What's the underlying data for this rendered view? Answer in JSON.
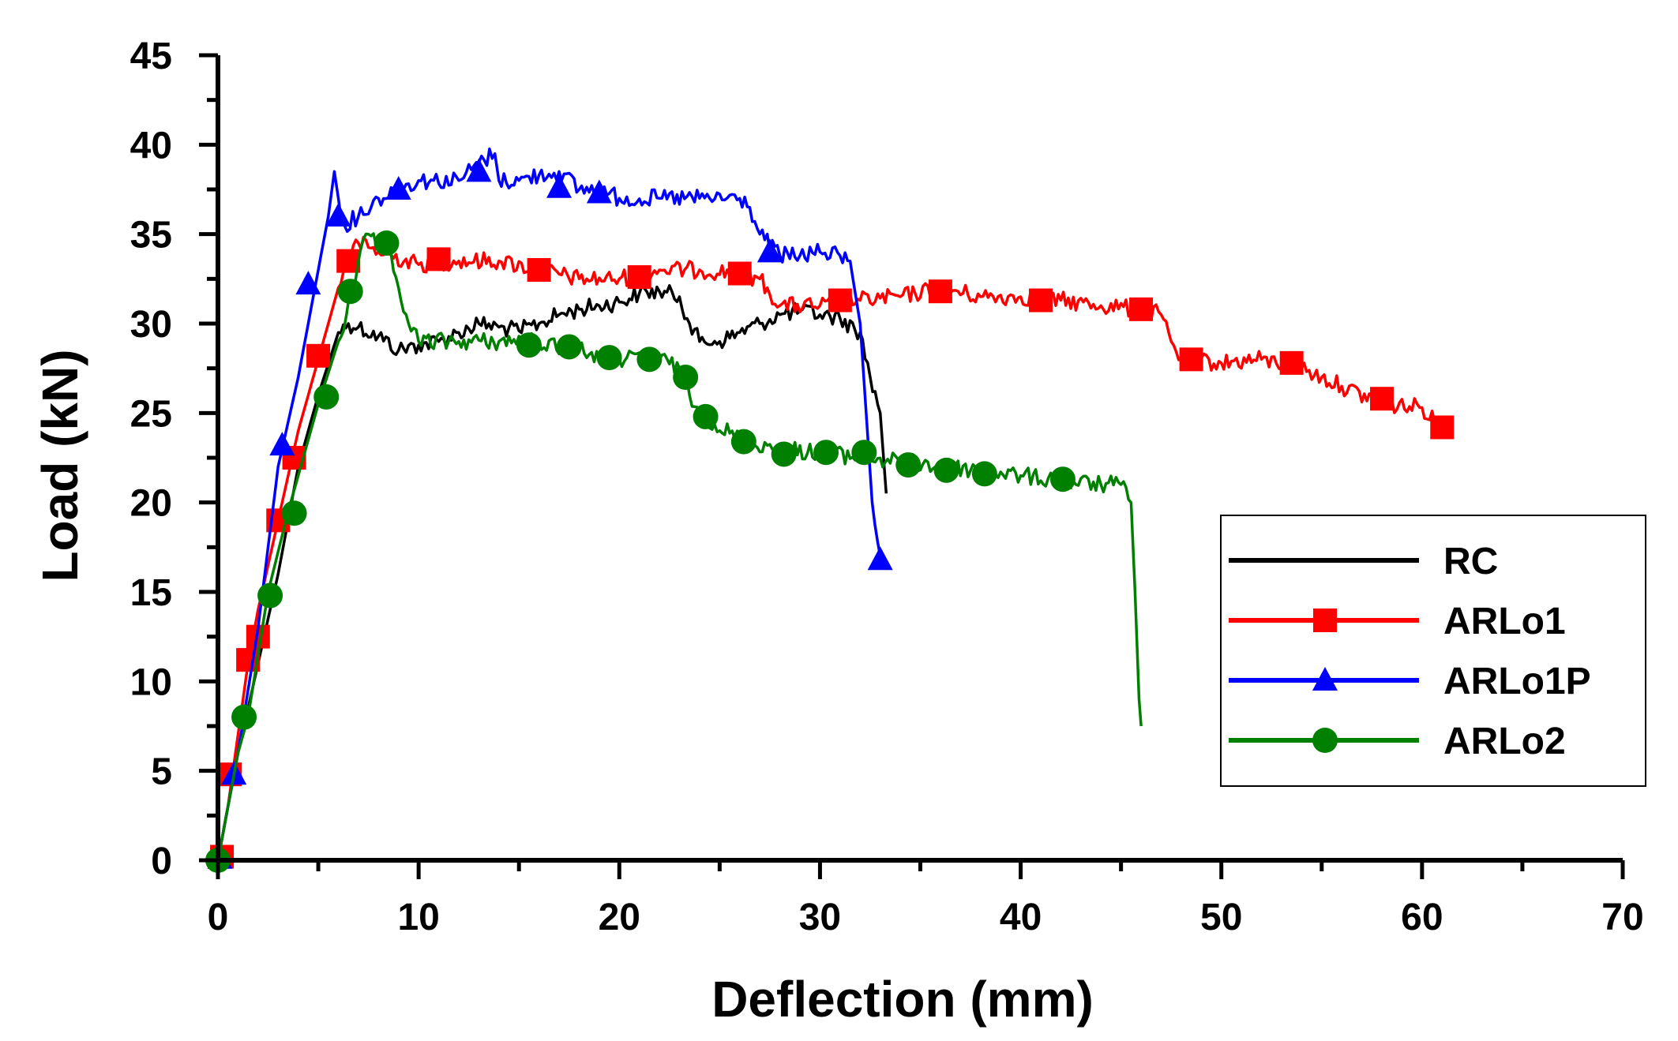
{
  "chart_data": {
    "type": "line",
    "title": "",
    "xlabel": "Deflection (mm)",
    "ylabel": "Load (kN)",
    "xlim": [
      0,
      70
    ],
    "ylim": [
      0,
      45
    ],
    "xticks": [
      0,
      10,
      20,
      30,
      40,
      50,
      60,
      70
    ],
    "yticks": [
      0,
      5,
      10,
      15,
      20,
      25,
      30,
      35,
      40,
      45
    ],
    "grid": false,
    "legend_position": "center-right",
    "series": [
      {
        "name": "RC",
        "color": "#000000",
        "marker": "none",
        "x": [
          0,
          1,
          2,
          3,
          4,
          5,
          6,
          6.5,
          7,
          8,
          9,
          10,
          11,
          12,
          13,
          14,
          15,
          16,
          17,
          18,
          19,
          20,
          21,
          22,
          23,
          23.5,
          24,
          25,
          26,
          27,
          28,
          29,
          30,
          31,
          32,
          32.5,
          33,
          33.3
        ],
        "y": [
          0,
          6,
          11,
          16,
          22,
          26,
          29.5,
          30,
          29.8,
          29.3,
          28.5,
          28.8,
          29,
          29.5,
          30,
          29.8,
          29.6,
          30,
          30.5,
          30.8,
          31,
          31.2,
          31.7,
          31.8,
          31.5,
          30,
          29,
          29,
          29.5,
          30,
          30.5,
          30.7,
          30.5,
          30.3,
          29.5,
          27,
          25,
          20.5
        ],
        "markers_x": [],
        "markers_y": []
      },
      {
        "name": "ARLo1",
        "color": "#ff0000",
        "marker": "square",
        "x": [
          0,
          0.5,
          1,
          1.5,
          2,
          3,
          4,
          5,
          6,
          6.5,
          7,
          8,
          10,
          12,
          14,
          16,
          18,
          20,
          22,
          24,
          26,
          27,
          28,
          30,
          32,
          34,
          36,
          38,
          40,
          42,
          44,
          46,
          47,
          47.5,
          48,
          50,
          52,
          54,
          55,
          56,
          58,
          60,
          61
        ],
        "y": [
          0,
          3,
          7,
          11,
          14,
          19,
          24,
          28,
          32,
          33.8,
          34.5,
          34,
          33.3,
          33.5,
          33.5,
          33,
          32.5,
          32.5,
          33,
          33,
          32.8,
          32.5,
          31,
          31,
          31.3,
          31.5,
          32,
          31.5,
          31.5,
          31.3,
          31,
          30.8,
          30.5,
          29,
          28,
          27.8,
          28,
          27.5,
          27,
          26.5,
          25.5,
          25.3,
          24.3
        ],
        "markers_x": [
          0.2,
          0.6,
          1.5,
          2,
          3,
          3.8,
          5,
          6.5,
          11,
          16,
          21,
          26,
          31,
          36,
          41,
          46,
          48.5,
          53.5,
          58,
          61
        ],
        "markers_y": [
          0.2,
          4.8,
          11.2,
          12.5,
          19,
          22.5,
          28.2,
          33.5,
          33.6,
          33,
          32.6,
          32.8,
          31.3,
          31.8,
          31.3,
          30.8,
          28,
          27.8,
          25.8,
          24.2
        ]
      },
      {
        "name": "ARLo1P",
        "color": "#0000ff",
        "marker": "triangle",
        "x": [
          0,
          0.5,
          1,
          2,
          3,
          4,
          5,
          5.5,
          5.8,
          6,
          6.3,
          7,
          8,
          9,
          10,
          12,
          13,
          13.8,
          14,
          15,
          16,
          17,
          18,
          19,
          20,
          22,
          24,
          26,
          26.5,
          27,
          28,
          29,
          30,
          31,
          31.5,
          32,
          32.3,
          32.6,
          33,
          33.3
        ],
        "y": [
          0,
          3,
          6,
          13,
          22,
          27,
          33,
          36,
          38.5,
          37,
          35.5,
          36,
          37,
          37.5,
          38,
          38,
          39,
          39.5,
          38,
          38,
          38.3,
          38.5,
          37.5,
          37.5,
          37,
          37,
          37,
          37,
          36.5,
          35,
          33.8,
          33.8,
          34,
          33.8,
          33.5,
          30,
          25,
          20,
          17,
          16.8
        ],
        "markers_x": [
          0.1,
          0.8,
          3.2,
          4.5,
          6,
          9,
          13,
          17,
          19,
          27.5,
          33
        ],
        "markers_y": [
          0.1,
          4.8,
          23.2,
          32.2,
          36,
          37.5,
          38.5,
          37.6,
          37.3,
          34,
          16.8
        ]
      },
      {
        "name": "ARLo2",
        "color": "#008000",
        "marker": "circle",
        "x": [
          0,
          1,
          1.5,
          2.5,
          3.5,
          5,
          6,
          6.8,
          7,
          7.5,
          8,
          8.5,
          9,
          9.5,
          10,
          12,
          14,
          16,
          18,
          19,
          20,
          22,
          23,
          23.5,
          24,
          26,
          28,
          30,
          32,
          34,
          36,
          38,
          40,
          42,
          44,
          45,
          45.5,
          45.7,
          45.9,
          46
        ],
        "y": [
          0,
          6,
          8,
          15,
          19.5,
          25.5,
          29,
          32,
          33.5,
          35,
          34.5,
          34,
          32,
          30,
          29,
          29,
          29,
          29,
          28.5,
          28.2,
          28,
          28,
          27.5,
          26,
          25,
          23.5,
          23,
          22.8,
          22.5,
          22.3,
          22,
          21.8,
          21.5,
          21.2,
          21,
          21,
          20,
          15,
          9,
          7.5
        ],
        "markers_x": [
          0,
          1.3,
          2.6,
          3.8,
          5.4,
          6.6,
          8.4,
          15.5,
          17.5,
          19.5,
          21.5,
          23.3,
          24.3,
          26.2,
          28.2,
          30.3,
          32.2,
          34.4,
          36.3,
          38.2,
          42.1
        ],
        "markers_y": [
          0,
          8,
          14.8,
          19.4,
          25.9,
          31.8,
          34.5,
          28.8,
          28.7,
          28.1,
          28,
          27,
          24.8,
          23.4,
          22.7,
          22.8,
          22.8,
          22.1,
          21.8,
          21.6,
          21.3
        ]
      }
    ]
  }
}
